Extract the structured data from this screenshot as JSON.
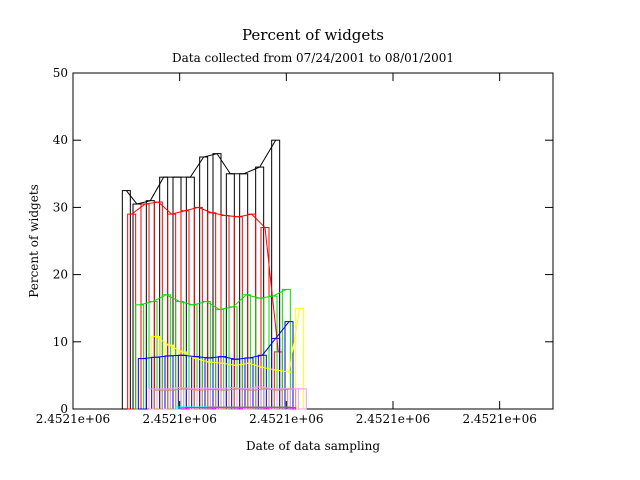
{
  "chart_data": {
    "type": "bar",
    "title": "Percent of widgets",
    "subtitle": "Data collected from 07/24/2001 to 08/01/2001",
    "xlabel": "Date of data sampling",
    "ylabel": "Percent of widgets",
    "xlim": [
      2452113.5,
      2452122.5
    ],
    "ylim": [
      0,
      50
    ],
    "x_ticks": [
      {
        "value": 2452113.5,
        "label": "2.4521e+06"
      },
      {
        "value": 2452115.5,
        "label": "2.4521e+06"
      },
      {
        "value": 2452117.5,
        "label": "2.4521e+06"
      },
      {
        "value": 2452119.5,
        "label": "2.4521e+06"
      },
      {
        "value": 2452121.5,
        "label": "2.4521e+06"
      }
    ],
    "y_ticks": [
      0,
      10,
      20,
      30,
      40,
      50
    ],
    "legend": false,
    "grid": false,
    "series": [
      {
        "color": "#000000",
        "x": [
          2452114.5,
          2452114.7,
          2452114.95,
          2452115.2,
          2452115.45,
          2452115.7,
          2452115.95,
          2452116.2,
          2452116.45,
          2452116.7,
          2452117.0,
          2452117.3
        ],
        "values": [
          32.5,
          30.5,
          31.0,
          34.5,
          34.5,
          34.5,
          37.5,
          38.0,
          35.0,
          35.0,
          36.0,
          40.0
        ]
      },
      {
        "color": "#ff0000",
        "x": [
          2452114.6,
          2452114.85,
          2452115.1,
          2452115.35,
          2452115.6,
          2452115.85,
          2452116.1,
          2452116.35,
          2452116.6,
          2452116.85,
          2452117.1,
          2452117.35
        ],
        "values": [
          29.0,
          30.5,
          30.8,
          29.0,
          29.5,
          30.0,
          29.2,
          28.8,
          28.6,
          29.0,
          27.0,
          8.5
        ]
      },
      {
        "color": "#00dd00",
        "x": [
          2452114.75,
          2452115.0,
          2452115.25,
          2452115.5,
          2452115.75,
          2452116.0,
          2452116.25,
          2452116.5,
          2452116.75,
          2452117.0,
          2452117.25,
          2452117.5
        ],
        "values": [
          15.5,
          16.0,
          17.0,
          16.0,
          15.5,
          16.0,
          14.8,
          15.2,
          17.0,
          16.5,
          16.8,
          17.8
        ]
      },
      {
        "color": "#ffff00",
        "x": [
          2452115.05,
          2452115.3,
          2452115.55,
          2452115.8,
          2452116.05,
          2452116.3,
          2452116.55,
          2452116.8,
          2452117.05,
          2452117.3,
          2452117.55,
          2452117.75
        ],
        "values": [
          10.8,
          9.5,
          8.5,
          7.5,
          7.0,
          6.8,
          6.5,
          6.8,
          6.2,
          5.8,
          5.5,
          15.0
        ]
      },
      {
        "color": "#0000ff",
        "x": [
          2452114.8,
          2452115.05,
          2452115.3,
          2452115.55,
          2452115.8,
          2452116.05,
          2452116.3,
          2452116.55,
          2452116.8,
          2452117.05,
          2452117.3,
          2452117.55
        ],
        "values": [
          7.5,
          7.7,
          7.9,
          8.0,
          7.8,
          7.6,
          7.8,
          7.4,
          7.6,
          8.0,
          10.5,
          13.0
        ]
      },
      {
        "color": "#ee99ff",
        "x": [
          2452115.0,
          2452115.25,
          2452115.5,
          2452115.75,
          2452116.0,
          2452116.25,
          2452116.5,
          2452116.75,
          2452117.0,
          2452117.25,
          2452117.5,
          2452117.8
        ],
        "values": [
          3.0,
          3.0,
          3.2,
          3.0,
          3.1,
          3.0,
          3.2,
          3.0,
          3.3,
          3.0,
          3.0,
          3.0
        ]
      },
      {
        "color": "#c89060",
        "x": [
          2452115.1,
          2452115.35,
          2452115.6,
          2452115.85,
          2452116.1,
          2452116.35,
          2452116.6,
          2452116.85,
          2452117.1,
          2452117.35,
          2452117.6
        ],
        "values": [
          2.8,
          2.8,
          3.0,
          2.8,
          2.9,
          2.8,
          3.0,
          2.8,
          3.0,
          2.8,
          3.0
        ]
      },
      {
        "color": "#00ffff",
        "x": [
          2452115.5,
          2452116.0,
          2452116.5,
          2452117.0,
          2452117.5
        ],
        "values": [
          0.3,
          0.3,
          0.3,
          0.3,
          0.3
        ]
      },
      {
        "color": "#ff00ff",
        "x": [
          2452115.6,
          2452116.1,
          2452116.6,
          2452117.1,
          2452117.6
        ],
        "values": [
          0.2,
          0.2,
          0.2,
          0.2,
          0.2
        ]
      },
      {
        "color": "#888888",
        "x": [
          2452116.0,
          2452116.5,
          2452117.0,
          2452117.5
        ],
        "values": [
          0.3,
          0.3,
          0.3,
          0.3
        ]
      }
    ]
  }
}
